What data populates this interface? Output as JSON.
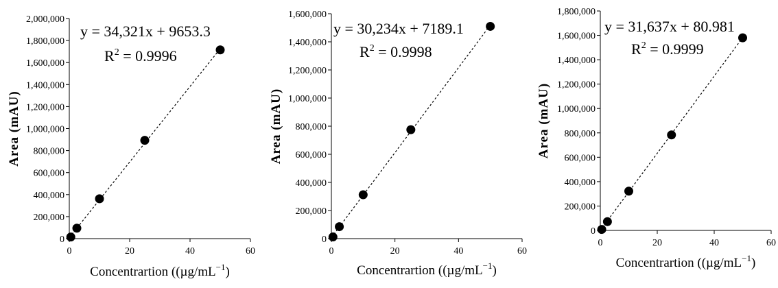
{
  "chart_data": [
    {
      "type": "scatter",
      "ylabel": "Area (mAU)",
      "xlabel": "Concentrartion ((µg/mL",
      "xlabel_sup": "−1",
      "xlabel_close": ")",
      "xlim": [
        0,
        60
      ],
      "ylim": [
        0,
        2000000
      ],
      "xticks": [
        0,
        20,
        40,
        60
      ],
      "yticks": [
        0,
        200000,
        400000,
        600000,
        800000,
        1000000,
        1200000,
        1400000,
        1600000,
        1800000,
        2000000
      ],
      "ytick_labels": [
        "0",
        "200,000",
        "400,000",
        "600,000",
        "800,000",
        "1,000,000",
        "1,200,000",
        "1,400,000",
        "1,600,000",
        "1,800,000",
        "2,000,000"
      ],
      "equation": "y = 34,321x + 9653.3",
      "r2_label": "R",
      "r2_sup": "2",
      "r2_value": " = 0.9996",
      "trendline": {
        "slope": 34321,
        "intercept": 9653.3,
        "x_range": [
          0,
          50
        ]
      },
      "points": [
        {
          "x": 0.5,
          "y": 15000
        },
        {
          "x": 2.5,
          "y": 95000
        },
        {
          "x": 10,
          "y": 362000
        },
        {
          "x": 25,
          "y": 893000
        },
        {
          "x": 50,
          "y": 1715000
        }
      ]
    },
    {
      "type": "scatter",
      "ylabel": "Area (mAU)",
      "xlabel": "Concentrartion ((µg/mL",
      "xlabel_sup": "−1",
      "xlabel_close": ")",
      "xlim": [
        0,
        60
      ],
      "ylim": [
        0,
        1600000
      ],
      "xticks": [
        0,
        20,
        40,
        60
      ],
      "yticks": [
        0,
        200000,
        400000,
        600000,
        800000,
        1000000,
        1200000,
        1400000,
        1600000
      ],
      "ytick_labels": [
        "0",
        "200,000",
        "400,000",
        "600,000",
        "800,000",
        "1,000,000",
        "1,200,000",
        "1,400,000",
        "1,600,000"
      ],
      "equation": "y = 30,234x + 7189.1",
      "r2_label": "R",
      "r2_sup": "2",
      "r2_value": " = 0.9998",
      "trendline": {
        "slope": 30234,
        "intercept": 7189.1,
        "x_range": [
          0,
          50
        ]
      },
      "points": [
        {
          "x": 0.5,
          "y": 12000
        },
        {
          "x": 2.5,
          "y": 85000
        },
        {
          "x": 10,
          "y": 312000
        },
        {
          "x": 25,
          "y": 775000
        },
        {
          "x": 50,
          "y": 1510000
        }
      ]
    },
    {
      "type": "scatter",
      "ylabel": "Area (mAU)",
      "xlabel": "Concentrartion ((µg/mL",
      "xlabel_sup": "−1",
      "xlabel_close": ")",
      "xlim": [
        0,
        60
      ],
      "ylim": [
        0,
        1800000
      ],
      "xticks": [
        0,
        20,
        40,
        60
      ],
      "yticks": [
        0,
        200000,
        400000,
        600000,
        800000,
        1000000,
        1200000,
        1400000,
        1600000,
        1800000
      ],
      "ytick_labels": [
        "0",
        "200,000",
        "400,000",
        "600,000",
        "800,000",
        "1,000,000",
        "1,200,000",
        "1,400,000",
        "1,600,000",
        "1,800,000"
      ],
      "equation": "y = 31,637x + 80.981",
      "r2_label": "R",
      "r2_sup": "2",
      "r2_value": " = 0.9999",
      "trendline": {
        "slope": 31637,
        "intercept": 80.981,
        "x_range": [
          0,
          50
        ]
      },
      "points": [
        {
          "x": 0.5,
          "y": 8000
        },
        {
          "x": 2.5,
          "y": 72000
        },
        {
          "x": 10,
          "y": 322000
        },
        {
          "x": 25,
          "y": 783000
        },
        {
          "x": 50,
          "y": 1580000
        }
      ]
    }
  ]
}
